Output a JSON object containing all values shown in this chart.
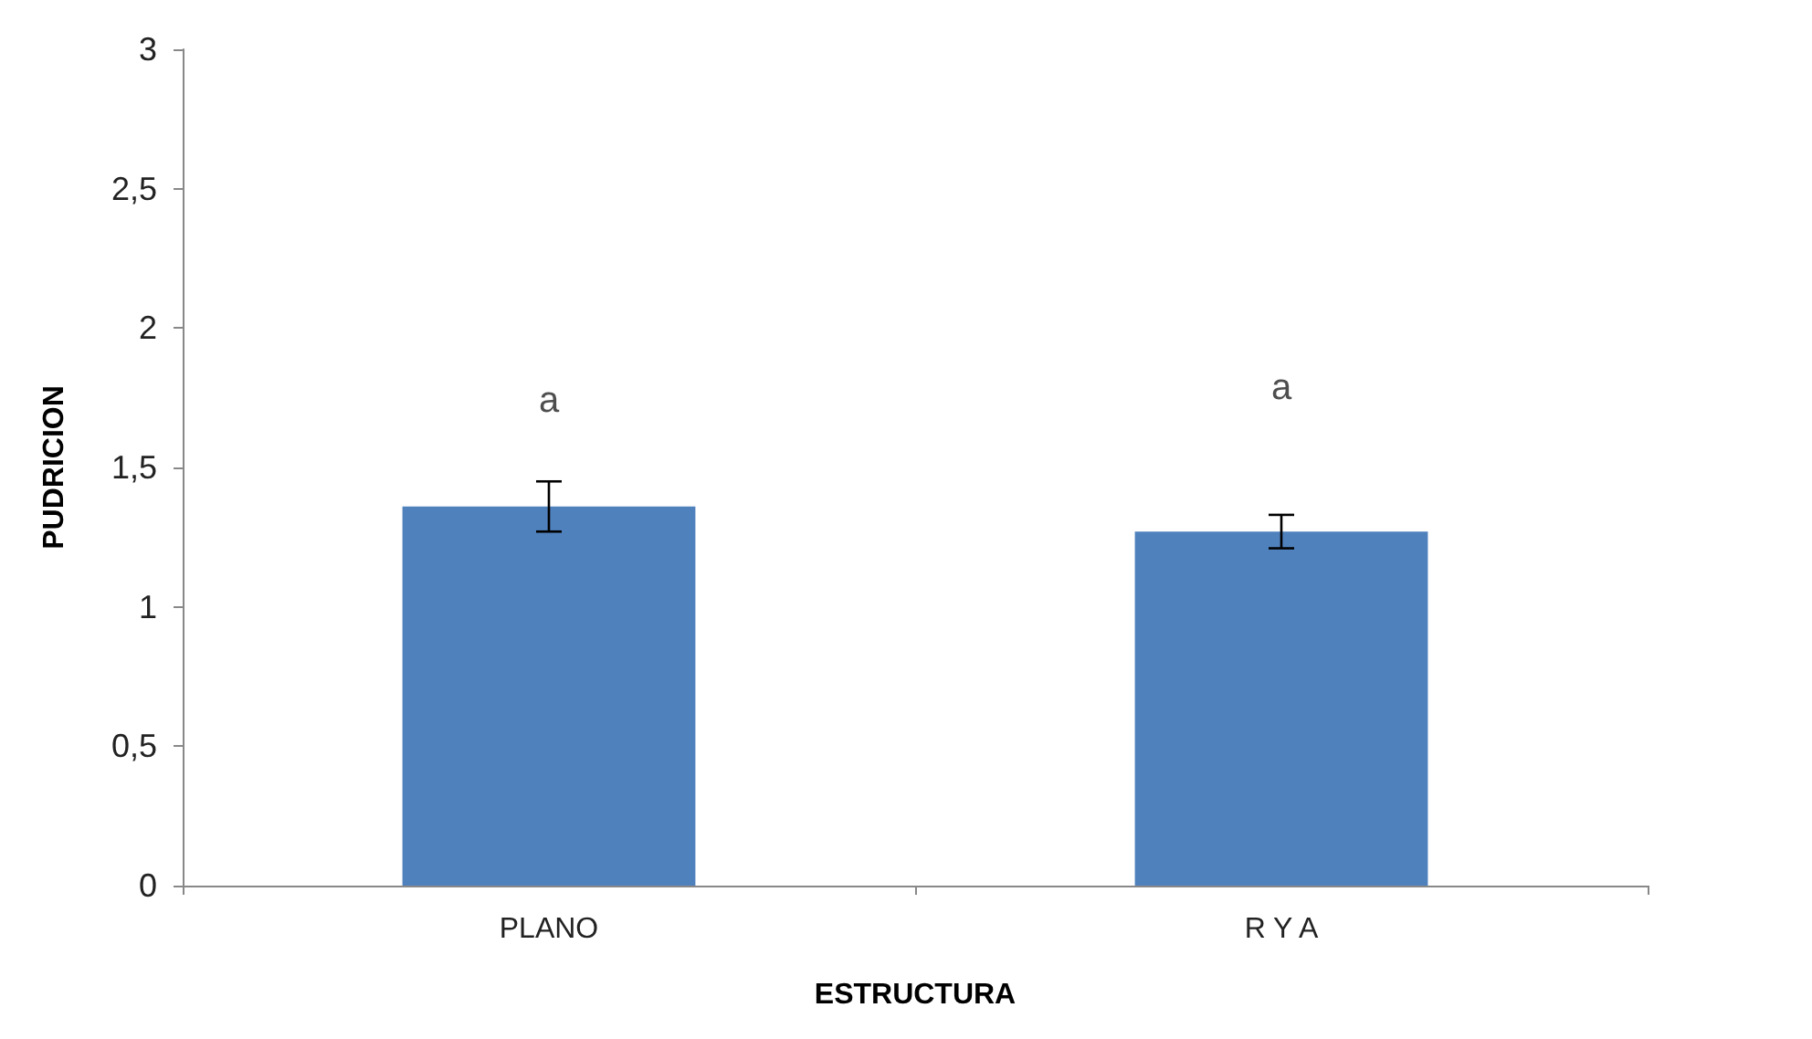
{
  "chart_data": {
    "type": "bar",
    "xlabel": "ESTRUCTURA",
    "ylabel": "PUDRICION",
    "categories": [
      "PLANO",
      "R Y A"
    ],
    "values": [
      1.36,
      1.27
    ],
    "errors": [
      0.09,
      0.06
    ],
    "color": "#4f81bd",
    "ylim": [
      0,
      3
    ],
    "yticks": [
      0,
      {
        "value": 0.5,
        "label": "0,5"
      },
      1,
      {
        "value": 1.5,
        "label": "1,5"
      },
      2,
      {
        "value": 2.5,
        "label": "2,5"
      },
      3
    ],
    "grid": false,
    "annotations": [
      "a",
      "a"
    ]
  }
}
